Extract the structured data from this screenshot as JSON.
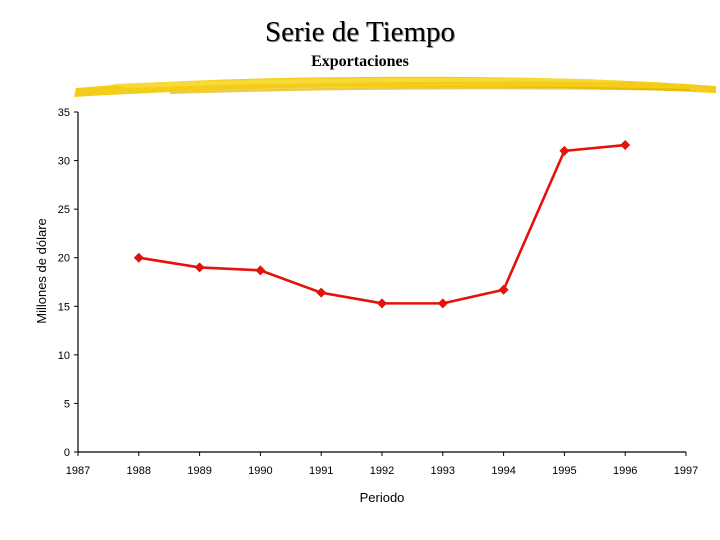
{
  "slide": {
    "title": "Serie de Tiempo"
  },
  "chart_data": {
    "type": "line",
    "title": "Exportaciones",
    "xlabel": "Periodo",
    "ylabel": "Millones de dólare",
    "x_ticks": [
      "1987",
      "1988",
      "1989",
      "1990",
      "1991",
      "1992",
      "1993",
      "1994",
      "1995",
      "1996",
      "1997"
    ],
    "y_ticks": [
      "0",
      "5",
      "10",
      "15",
      "20",
      "25",
      "30",
      "35"
    ],
    "xlim": [
      1987,
      1997
    ],
    "ylim": [
      0,
      35
    ],
    "grid": false,
    "series": [
      {
        "x": [
          1988,
          1989,
          1990,
          1991,
          1992,
          1993,
          1994,
          1995,
          1996
        ],
        "y": [
          20.0,
          19.0,
          18.7,
          16.4,
          15.3,
          15.3,
          16.7,
          31.0,
          31.6
        ],
        "color": "#e3120b"
      }
    ]
  },
  "colors": {
    "accent_brush": "#f2c800",
    "line": "#e3120b"
  }
}
